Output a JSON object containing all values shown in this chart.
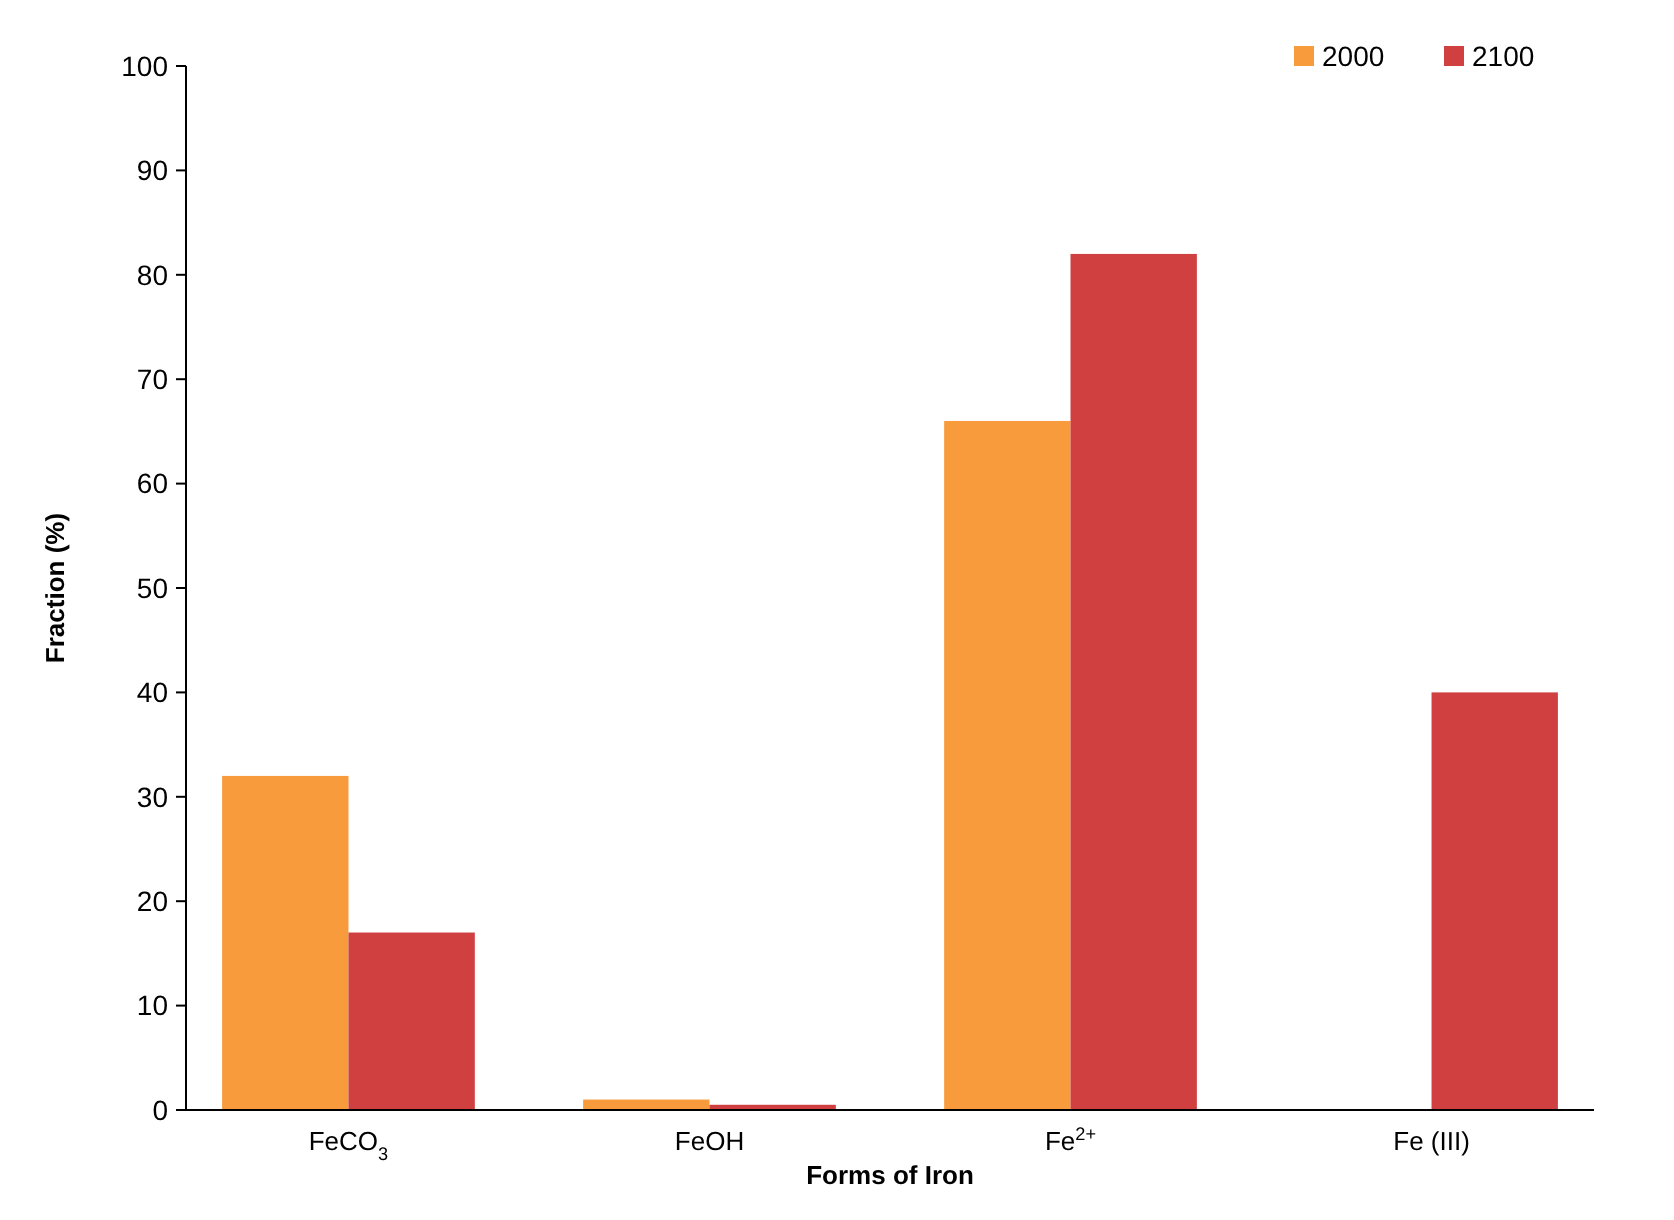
{
  "chart_data": {
    "type": "bar",
    "xlabel": "Forms of Iron",
    "ylabel": "Fraction (%)",
    "categories": [
      "FeCO$_{3}$",
      "FeOH",
      "Fe$^{2+}$",
      "Fe (III)"
    ],
    "series": [
      {
        "name": "2000",
        "color": "#f79b3c",
        "values": [
          32,
          1,
          66,
          0
        ]
      },
      {
        "name": "2100",
        "color": "#d04040",
        "values": [
          17,
          0.5,
          82,
          40
        ]
      }
    ],
    "ylim": [
      0,
      100
    ],
    "yticks": [
      0,
      10,
      20,
      30,
      40,
      50,
      60,
      70,
      80,
      90,
      100
    ],
    "grid": false,
    "legend": "top right"
  }
}
